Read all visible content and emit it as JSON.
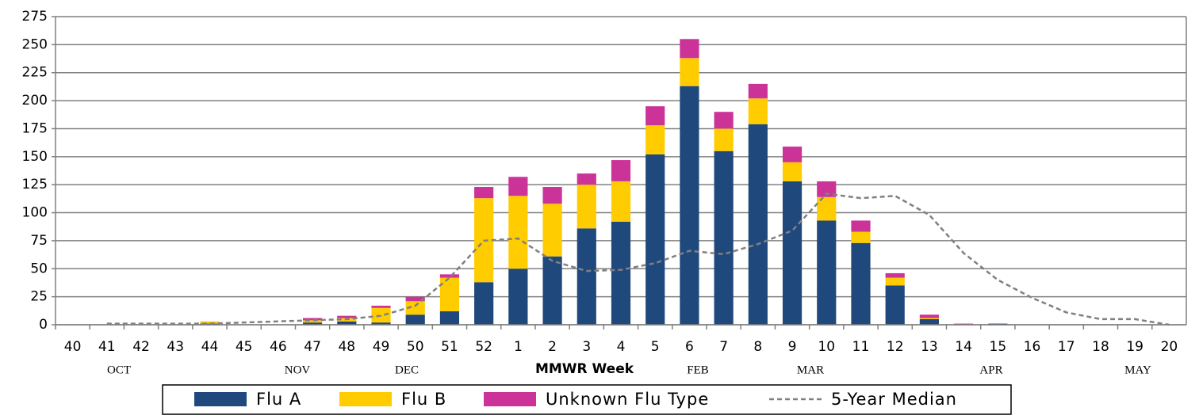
{
  "chart_data": {
    "type": "bar",
    "stacked": true,
    "x_label": "MMWR Week",
    "categories": [
      "40",
      "41",
      "42",
      "43",
      "44",
      "45",
      "46",
      "47",
      "48",
      "49",
      "50",
      "51",
      "52",
      "1",
      "2",
      "3",
      "4",
      "5",
      "6",
      "7",
      "8",
      "9",
      "10",
      "11",
      "12",
      "13",
      "14",
      "15",
      "16",
      "17",
      "18",
      "19",
      "20"
    ],
    "month_labels": [
      "OCT",
      "NOV",
      "DEC",
      "FEB",
      "MAR",
      "APR",
      "MAY"
    ],
    "series": [
      {
        "name": "Flu A",
        "color": "#1f497d",
        "values": [
          0,
          0,
          0,
          0,
          1,
          0,
          0,
          2,
          3,
          2,
          9,
          12,
          38,
          50,
          61,
          86,
          92,
          152,
          213,
          155,
          179,
          128,
          93,
          73,
          35,
          5,
          0,
          1,
          0,
          0,
          0,
          0,
          0
        ]
      },
      {
        "name": "Flu B",
        "color": "#ffcc00",
        "values": [
          0,
          0,
          0,
          0,
          2,
          0,
          0,
          2,
          3,
          13,
          12,
          30,
          75,
          65,
          47,
          39,
          36,
          26,
          25,
          20,
          23,
          17,
          21,
          10,
          7,
          1,
          0,
          0,
          0,
          0,
          0,
          0,
          0
        ]
      },
      {
        "name": "Unknown Flu Type",
        "color": "#cc3399",
        "values": [
          0,
          0,
          0,
          0,
          0,
          0,
          0,
          2,
          2,
          2,
          4,
          3,
          10,
          17,
          15,
          10,
          19,
          17,
          17,
          15,
          13,
          14,
          14,
          10,
          4,
          3,
          1,
          0,
          0,
          0,
          0,
          0,
          0
        ]
      },
      {
        "name": "5-Year Median",
        "color": "#808080",
        "type": "line",
        "dashed": true,
        "values": [
          null,
          1,
          1,
          1,
          1,
          2,
          3,
          4,
          5,
          8,
          17,
          42,
          75,
          77,
          57,
          48,
          49,
          55,
          66,
          63,
          72,
          84,
          117,
          113,
          115,
          98,
          64,
          40,
          24,
          11,
          5,
          5,
          0
        ]
      }
    ],
    "ylim": [
      0,
      275
    ],
    "yticks": [
      0,
      25,
      50,
      75,
      100,
      125,
      150,
      175,
      200,
      225,
      250,
      275
    ],
    "grid": true
  }
}
